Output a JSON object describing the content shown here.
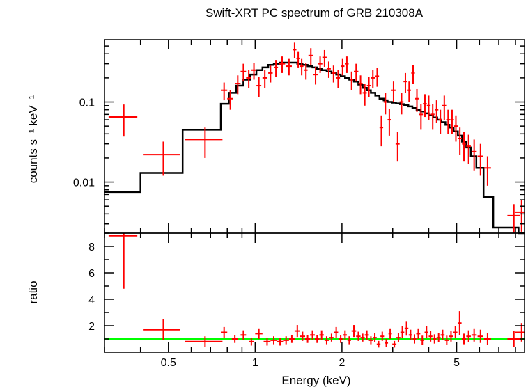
{
  "title": "Swift-XRT PC spectrum of GRB 210308A",
  "xlabel": "Energy (keV)",
  "colors": {
    "data": "#ff0000",
    "model": "#000000",
    "unity": "#00ff00",
    "axes": "#000000"
  },
  "chart_data": [
    {
      "panel": "spectrum",
      "type": "scatter",
      "xscale": "log",
      "yscale": "log",
      "xlim": [
        0.3,
        8.6
      ],
      "ylim": [
        0.0023,
        0.6
      ],
      "ylabel": "counts s⁻¹ keV⁻¹",
      "yticks": [
        {
          "v": 0.01,
          "label": "0.01"
        },
        {
          "v": 0.1,
          "label": "0.1"
        }
      ],
      "grid": false,
      "data_series": {
        "x": [
          0.35,
          0.48,
          0.67,
          0.78,
          0.82,
          0.87,
          0.91,
          0.95,
          0.99,
          1.03,
          1.08,
          1.13,
          1.18,
          1.24,
          1.31,
          1.37,
          1.41,
          1.45,
          1.5,
          1.56,
          1.62,
          1.68,
          1.74,
          1.8,
          1.87,
          1.94,
          2.01,
          2.08,
          2.16,
          2.24,
          2.32,
          2.4,
          2.48,
          2.56,
          2.65,
          2.74,
          2.83,
          2.92,
          3.02,
          3.12,
          3.22,
          3.32,
          3.42,
          3.53,
          3.64,
          3.76,
          3.88,
          4.0,
          4.13,
          4.26,
          4.39,
          4.53,
          4.67,
          4.82,
          4.97,
          5.13,
          5.3,
          5.5,
          5.75,
          6.05,
          6.4,
          7.9,
          8.4
        ],
        "xerr": [
          0.04,
          0.07,
          0.1,
          0.02,
          0.02,
          0.02,
          0.02,
          0.02,
          0.02,
          0.02,
          0.02,
          0.02,
          0.02,
          0.03,
          0.03,
          0.02,
          0.02,
          0.02,
          0.02,
          0.03,
          0.03,
          0.03,
          0.03,
          0.03,
          0.03,
          0.03,
          0.03,
          0.03,
          0.03,
          0.04,
          0.04,
          0.04,
          0.04,
          0.04,
          0.04,
          0.04,
          0.04,
          0.04,
          0.05,
          0.05,
          0.05,
          0.05,
          0.05,
          0.05,
          0.05,
          0.06,
          0.06,
          0.06,
          0.06,
          0.06,
          0.06,
          0.07,
          0.07,
          0.07,
          0.07,
          0.08,
          0.08,
          0.1,
          0.12,
          0.14,
          0.18,
          0.4,
          0.4
        ],
        "y": [
          0.065,
          0.022,
          0.034,
          0.14,
          0.11,
          0.17,
          0.24,
          0.2,
          0.25,
          0.16,
          0.2,
          0.23,
          0.27,
          0.3,
          0.28,
          0.45,
          0.35,
          0.28,
          0.25,
          0.38,
          0.22,
          0.3,
          0.36,
          0.26,
          0.23,
          0.2,
          0.28,
          0.3,
          0.19,
          0.24,
          0.17,
          0.13,
          0.16,
          0.2,
          0.21,
          0.048,
          0.1,
          0.06,
          0.14,
          0.03,
          0.1,
          0.18,
          0.14,
          0.23,
          0.11,
          0.07,
          0.095,
          0.09,
          0.07,
          0.08,
          0.06,
          0.09,
          0.06,
          0.06,
          0.05,
          0.035,
          0.03,
          0.028,
          0.024,
          0.021,
          0.015,
          0.0038,
          0.0042
        ],
        "yerr": [
          0.028,
          0.01,
          0.014,
          0.035,
          0.03,
          0.045,
          0.06,
          0.05,
          0.06,
          0.045,
          0.05,
          0.055,
          0.065,
          0.07,
          0.065,
          0.1,
          0.08,
          0.065,
          0.06,
          0.09,
          0.055,
          0.07,
          0.085,
          0.06,
          0.055,
          0.05,
          0.065,
          0.07,
          0.05,
          0.06,
          0.045,
          0.04,
          0.045,
          0.05,
          0.055,
          0.02,
          0.03,
          0.022,
          0.04,
          0.012,
          0.03,
          0.05,
          0.04,
          0.06,
          0.035,
          0.025,
          0.03,
          0.03,
          0.025,
          0.025,
          0.02,
          0.03,
          0.02,
          0.02,
          0.018,
          0.013,
          0.012,
          0.011,
          0.01,
          0.009,
          0.006,
          0.0015,
          0.0018
        ]
      },
      "model_series": {
        "bin_edges": [
          0.3,
          0.4,
          0.56,
          0.76,
          0.81,
          0.86,
          0.91,
          0.96,
          1.01,
          1.06,
          1.11,
          1.16,
          1.22,
          1.28,
          1.34,
          1.4,
          1.46,
          1.52,
          1.58,
          1.64,
          1.7,
          1.77,
          1.84,
          1.91,
          1.98,
          2.05,
          2.12,
          2.2,
          2.28,
          2.36,
          2.44,
          2.52,
          2.61,
          2.7,
          2.79,
          2.88,
          2.98,
          3.08,
          3.18,
          3.29,
          3.4,
          3.51,
          3.63,
          3.75,
          3.87,
          4.0,
          4.14,
          4.28,
          4.42,
          4.57,
          4.72,
          4.88,
          5.05,
          5.22,
          5.4,
          5.6,
          5.85,
          6.2,
          6.7,
          8.2,
          8.6
        ],
        "values": [
          0.0075,
          0.013,
          0.045,
          0.095,
          0.13,
          0.16,
          0.19,
          0.22,
          0.25,
          0.27,
          0.29,
          0.3,
          0.31,
          0.31,
          0.31,
          0.3,
          0.29,
          0.28,
          0.27,
          0.26,
          0.25,
          0.24,
          0.23,
          0.22,
          0.21,
          0.2,
          0.19,
          0.18,
          0.165,
          0.15,
          0.14,
          0.13,
          0.12,
          0.11,
          0.105,
          0.1,
          0.098,
          0.096,
          0.094,
          0.092,
          0.088,
          0.084,
          0.08,
          0.076,
          0.072,
          0.068,
          0.064,
          0.06,
          0.056,
          0.052,
          0.048,
          0.043,
          0.038,
          0.032,
          0.027,
          0.021,
          0.015,
          0.0065,
          0.0027,
          0.0022
        ]
      }
    },
    {
      "panel": "ratio",
      "type": "scatter",
      "xscale": "log",
      "yscale": "linear",
      "xlim": [
        0.3,
        8.6
      ],
      "ylim": [
        0.0,
        9.0
      ],
      "ylabel": "ratio",
      "yticks": [
        {
          "v": 2,
          "label": "2"
        },
        {
          "v": 4,
          "label": "4"
        },
        {
          "v": 6,
          "label": "6"
        },
        {
          "v": 8,
          "label": "8"
        }
      ],
      "xticks": [
        {
          "v": 0.5,
          "label": "0.5"
        },
        {
          "v": 1,
          "label": "1"
        },
        {
          "v": 2,
          "label": "2"
        },
        {
          "v": 5,
          "label": "5"
        }
      ],
      "reference_line": 1.0,
      "data_series": {
        "x": [
          0.35,
          0.48,
          0.67,
          0.78,
          0.85,
          0.91,
          0.97,
          1.03,
          1.1,
          1.16,
          1.22,
          1.28,
          1.34,
          1.4,
          1.46,
          1.52,
          1.58,
          1.64,
          1.7,
          1.77,
          1.84,
          1.91,
          1.98,
          2.05,
          2.12,
          2.2,
          2.28,
          2.36,
          2.44,
          2.52,
          2.6,
          2.68,
          2.76,
          2.85,
          2.94,
          3.04,
          3.14,
          3.24,
          3.35,
          3.46,
          3.57,
          3.68,
          3.8,
          3.93,
          4.06,
          4.19,
          4.33,
          4.47,
          4.62,
          4.78,
          4.95,
          5.12,
          5.3,
          5.5,
          5.75,
          6.05,
          6.4,
          7.9,
          8.4
        ],
        "xerr": [
          0.04,
          0.07,
          0.1,
          0.02,
          0.02,
          0.02,
          0.02,
          0.03,
          0.03,
          0.03,
          0.03,
          0.03,
          0.03,
          0.03,
          0.03,
          0.03,
          0.03,
          0.03,
          0.03,
          0.03,
          0.03,
          0.03,
          0.03,
          0.03,
          0.03,
          0.04,
          0.04,
          0.04,
          0.04,
          0.04,
          0.04,
          0.04,
          0.04,
          0.04,
          0.04,
          0.05,
          0.05,
          0.05,
          0.05,
          0.05,
          0.05,
          0.06,
          0.06,
          0.06,
          0.06,
          0.06,
          0.07,
          0.07,
          0.07,
          0.07,
          0.08,
          0.08,
          0.09,
          0.1,
          0.12,
          0.14,
          0.18,
          0.4,
          0.4
        ],
        "y": [
          8.8,
          1.7,
          0.8,
          1.5,
          1.0,
          1.3,
          0.8,
          1.4,
          0.8,
          0.9,
          0.8,
          0.9,
          1.0,
          1.6,
          1.2,
          1.0,
          1.3,
          1.0,
          1.3,
          0.9,
          1.1,
          1.5,
          1.0,
          1.3,
          0.9,
          1.6,
          1.2,
          1.1,
          1.3,
          0.9,
          1.1,
          0.6,
          1.2,
          0.7,
          1.4,
          0.6,
          1.1,
          1.5,
          1.8,
          1.3,
          1.0,
          1.4,
          0.9,
          1.5,
          1.2,
          1.0,
          1.1,
          1.3,
          0.9,
          1.2,
          1.5,
          2.2,
          1.0,
          1.2,
          1.3,
          1.2,
          1.0,
          1.0,
          1.5
        ],
        "yerr": [
          4.0,
          0.8,
          0.4,
          0.4,
          0.3,
          0.35,
          0.3,
          0.4,
          0.3,
          0.3,
          0.3,
          0.3,
          0.3,
          0.45,
          0.35,
          0.3,
          0.35,
          0.3,
          0.35,
          0.3,
          0.3,
          0.4,
          0.3,
          0.35,
          0.3,
          0.45,
          0.35,
          0.3,
          0.35,
          0.3,
          0.35,
          0.25,
          0.35,
          0.3,
          0.4,
          0.25,
          0.35,
          0.45,
          0.55,
          0.4,
          0.35,
          0.4,
          0.35,
          0.45,
          0.4,
          0.35,
          0.35,
          0.4,
          0.35,
          0.4,
          0.45,
          0.9,
          0.4,
          0.45,
          0.5,
          0.5,
          0.45,
          0.6,
          0.7
        ]
      }
    }
  ]
}
